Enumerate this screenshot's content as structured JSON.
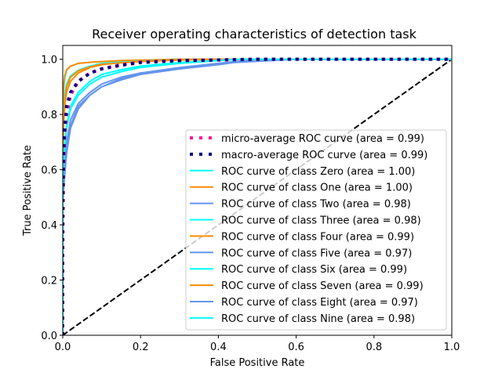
{
  "chart_data": {
    "type": "line",
    "title": "Receiver operating characteristics of detection task",
    "xlabel": "False Positive Rate",
    "ylabel": "True Positive Rate",
    "xlim": [
      0.0,
      1.0
    ],
    "ylim": [
      0.0,
      1.05
    ],
    "grid": false,
    "legend_position": "lower-right",
    "x_ticks": [
      "0.0",
      "0.2",
      "0.4",
      "0.6",
      "0.8",
      "1.0"
    ],
    "y_ticks": [
      "0.0",
      "0.2",
      "0.4",
      "0.6",
      "0.8",
      "1.0"
    ],
    "x_tick_values": [
      0.0,
      0.2,
      0.4,
      0.6,
      0.8,
      1.0
    ],
    "y_tick_values": [
      0.0,
      0.2,
      0.4,
      0.6,
      0.8,
      1.0
    ],
    "diagonal": {
      "x": [
        0,
        1
      ],
      "y": [
        0,
        1
      ],
      "color": "#000000",
      "style": "dashed"
    },
    "series": [
      {
        "name": "micro-average ROC curve (area = 0.99)",
        "color": "#ff1493",
        "style": "dotted",
        "x": [
          0.0,
          0.0,
          0.002,
          0.005,
          0.01,
          0.02,
          0.04,
          0.07,
          0.1,
          0.15,
          0.2,
          0.3,
          0.5,
          1.0
        ],
        "y": [
          0.0,
          0.3,
          0.6,
          0.72,
          0.8,
          0.87,
          0.92,
          0.95,
          0.965,
          0.98,
          0.99,
          0.995,
          1.0,
          1.0
        ]
      },
      {
        "name": "macro-average ROC curve (area = 0.99)",
        "color": "#000080",
        "style": "dotted",
        "x": [
          0.0,
          0.0,
          0.002,
          0.005,
          0.01,
          0.02,
          0.04,
          0.07,
          0.1,
          0.15,
          0.2,
          0.3,
          0.5,
          1.0
        ],
        "y": [
          0.0,
          0.4,
          0.65,
          0.75,
          0.83,
          0.88,
          0.92,
          0.95,
          0.965,
          0.978,
          0.988,
          0.995,
          1.0,
          1.0
        ]
      },
      {
        "name": "ROC curve of class Zero (area = 1.00)",
        "color": "#00ffff",
        "style": "solid",
        "x": [
          0.0,
          0.0,
          0.002,
          0.005,
          0.01,
          0.02,
          0.04,
          0.08,
          0.15,
          0.3,
          1.0
        ],
        "y": [
          0.0,
          0.7,
          0.88,
          0.93,
          0.96,
          0.975,
          0.985,
          0.99,
          0.995,
          1.0,
          1.0
        ]
      },
      {
        "name": "ROC curve of class One (area = 1.00)",
        "color": "#ff8c00",
        "style": "solid",
        "x": [
          0.0,
          0.0,
          0.002,
          0.005,
          0.01,
          0.02,
          0.04,
          0.08,
          0.15,
          0.3,
          1.0
        ],
        "y": [
          0.0,
          0.75,
          0.9,
          0.94,
          0.962,
          0.975,
          0.985,
          0.99,
          0.995,
          1.0,
          1.0
        ]
      },
      {
        "name": "ROC curve of class Two (area = 0.98)",
        "color": "#6495ed",
        "style": "solid",
        "x": [
          0.0,
          0.0,
          0.003,
          0.01,
          0.02,
          0.04,
          0.07,
          0.1,
          0.15,
          0.2,
          0.3,
          0.4,
          0.5,
          1.0
        ],
        "y": [
          0.0,
          0.5,
          0.6,
          0.7,
          0.78,
          0.84,
          0.88,
          0.91,
          0.935,
          0.95,
          0.965,
          0.98,
          1.0,
          1.0
        ]
      },
      {
        "name": "ROC curve of class Three (area = 0.98)",
        "color": "#00ffff",
        "style": "solid",
        "x": [
          0.0,
          0.0,
          0.003,
          0.01,
          0.02,
          0.04,
          0.07,
          0.1,
          0.15,
          0.2,
          0.3,
          0.45,
          1.0
        ],
        "y": [
          0.0,
          0.55,
          0.65,
          0.75,
          0.82,
          0.87,
          0.91,
          0.935,
          0.955,
          0.97,
          0.985,
          1.0,
          1.0
        ]
      },
      {
        "name": "ROC curve of class Four (area = 0.99)",
        "color": "#ff8c00",
        "style": "solid",
        "x": [
          0.0,
          0.0,
          0.002,
          0.005,
          0.01,
          0.02,
          0.04,
          0.07,
          0.1,
          0.15,
          0.25,
          0.4,
          1.0
        ],
        "y": [
          0.0,
          0.6,
          0.75,
          0.83,
          0.88,
          0.92,
          0.95,
          0.97,
          0.98,
          0.988,
          0.995,
          1.0,
          1.0
        ]
      },
      {
        "name": "ROC curve of class Five (area = 0.97)",
        "color": "#6495ed",
        "style": "solid",
        "x": [
          0.0,
          0.0,
          0.005,
          0.01,
          0.02,
          0.04,
          0.07,
          0.1,
          0.15,
          0.2,
          0.3,
          0.4,
          0.5,
          1.0
        ],
        "y": [
          0.0,
          0.5,
          0.6,
          0.68,
          0.76,
          0.83,
          0.87,
          0.9,
          0.925,
          0.945,
          0.965,
          0.985,
          1.0,
          1.0
        ]
      },
      {
        "name": "ROC curve of class Six (area = 0.99)",
        "color": "#00ffff",
        "style": "solid",
        "x": [
          0.0,
          0.0,
          0.002,
          0.005,
          0.01,
          0.02,
          0.04,
          0.07,
          0.1,
          0.2,
          0.35,
          1.0
        ],
        "y": [
          0.0,
          0.65,
          0.8,
          0.87,
          0.91,
          0.94,
          0.96,
          0.975,
          0.985,
          0.993,
          1.0,
          1.0
        ]
      },
      {
        "name": "ROC curve of class Seven (area = 0.99)",
        "color": "#ff8c00",
        "style": "solid",
        "x": [
          0.0,
          0.0,
          0.002,
          0.005,
          0.01,
          0.02,
          0.04,
          0.07,
          0.1,
          0.2,
          0.35,
          1.0
        ],
        "y": [
          0.0,
          0.62,
          0.78,
          0.85,
          0.9,
          0.935,
          0.958,
          0.972,
          0.982,
          0.992,
          1.0,
          1.0
        ]
      },
      {
        "name": "ROC curve of class Eight (area = 0.97)",
        "color": "#6495ed",
        "style": "solid",
        "x": [
          0.0,
          0.0,
          0.005,
          0.01,
          0.02,
          0.04,
          0.07,
          0.1,
          0.15,
          0.2,
          0.3,
          0.4,
          0.6,
          1.0
        ],
        "y": [
          0.0,
          0.48,
          0.58,
          0.66,
          0.75,
          0.82,
          0.87,
          0.9,
          0.93,
          0.95,
          0.97,
          0.985,
          1.0,
          1.0
        ]
      },
      {
        "name": "ROC curve of class Nine (area = 0.98)",
        "color": "#00ffff",
        "style": "solid",
        "x": [
          0.0,
          0.0,
          0.003,
          0.01,
          0.02,
          0.04,
          0.07,
          0.1,
          0.15,
          0.2,
          0.3,
          0.45,
          1.0
        ],
        "y": [
          0.0,
          0.55,
          0.66,
          0.76,
          0.83,
          0.88,
          0.92,
          0.945,
          0.962,
          0.975,
          0.988,
          1.0,
          1.0
        ]
      }
    ]
  }
}
